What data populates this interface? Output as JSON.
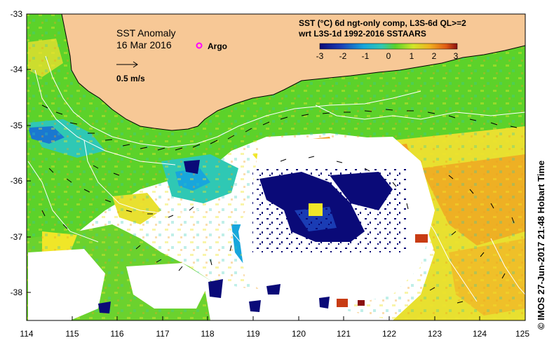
{
  "map": {
    "title": "SST Anomaly",
    "date": "16 Mar 2016",
    "argo_label": "Argo",
    "scale_arrow_label": "0.5 m/s",
    "colorbar_title_line1": "SST (°C) 6d ngt-only comp, L3S-6d QL>=2",
    "colorbar_title_line2": "wrt L3S-1d 1992-2016 SSTAARS",
    "colorbar_ticks": [
      "-3",
      "-2",
      "-1",
      "0",
      "1",
      "2",
      "3"
    ],
    "x_ticks": [
      "114",
      "115",
      "116",
      "117",
      "118",
      "119",
      "120",
      "121",
      "122",
      "123",
      "124",
      "125"
    ],
    "y_ticks": [
      "-33",
      "-34",
      "-35",
      "-36",
      "-37",
      "-38"
    ],
    "credit": "© IMOS 27-Jun-2017 21:48 Hobart Time",
    "colors": {
      "land": "#F7C896",
      "argo": "#FF00FF",
      "deep_blue": "#0A0A78",
      "green": "#5CD22A",
      "cyan": "#2FC8B4",
      "yellow": "#F0E628",
      "orange": "#F0A020"
    }
  }
}
